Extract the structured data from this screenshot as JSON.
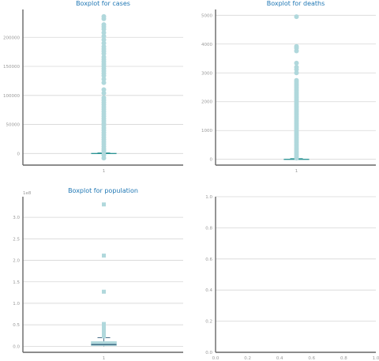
{
  "chart_data": [
    {
      "type": "box",
      "title": "Boxplot for cases",
      "xticks": [
        "1"
      ],
      "yticks": [
        0,
        50000,
        100000,
        150000,
        200000
      ],
      "ylim": [
        -20000,
        248000
      ],
      "grid": true,
      "color": "#b0d8dc",
      "median_color": "#1a8a8a",
      "box": {
        "q1": 0,
        "median": 0,
        "q3": 500,
        "whisker_low": 0,
        "whisker_high": 1200
      },
      "outliers": [
        -8000,
        -3000,
        2000,
        5000,
        8000,
        12000,
        16000,
        20000,
        24000,
        28000,
        32000,
        36000,
        40000,
        44000,
        48000,
        52000,
        56000,
        60000,
        64000,
        68000,
        72000,
        76000,
        80000,
        84000,
        88000,
        92000,
        96000,
        104000,
        110000,
        122000,
        128000,
        134000,
        138000,
        142000,
        146000,
        150000,
        154000,
        158000,
        162000,
        166000,
        172000,
        176000,
        180000,
        184000,
        190000,
        196000,
        202000,
        208000,
        214000,
        218000,
        222000,
        232000,
        236000
      ]
    },
    {
      "type": "box",
      "title": "Boxplot for deaths",
      "xticks": [
        "1"
      ],
      "yticks": [
        0,
        1000,
        2000,
        3000,
        4000,
        5000
      ],
      "ylim": [
        -200,
        5200
      ],
      "grid": true,
      "color": "#b0d8dc",
      "median_color": "#1a8a8a",
      "box": {
        "q1": 0,
        "median": 0,
        "q3": 10,
        "whisker_low": 0,
        "whisker_high": 25
      },
      "outliers": [
        40,
        100,
        160,
        220,
        280,
        340,
        400,
        460,
        520,
        580,
        640,
        700,
        760,
        820,
        880,
        940,
        1000,
        1060,
        1120,
        1180,
        1240,
        1300,
        1360,
        1420,
        1480,
        1540,
        1600,
        1660,
        1720,
        1780,
        1840,
        1900,
        1960,
        2020,
        2080,
        2140,
        2200,
        2260,
        2320,
        2380,
        2440,
        2500,
        2560,
        2620,
        2680,
        2740,
        3000,
        3120,
        3200,
        3340,
        3760,
        3860,
        3920,
        4950
      ]
    },
    {
      "type": "box",
      "title": "Boxplot for population",
      "offset_text": "1e8",
      "xticks": [
        "1"
      ],
      "yticks": [
        "0.0",
        "0.5",
        "1.0",
        "1.5",
        "2.0",
        "2.5",
        "3.0"
      ],
      "ylim": [
        -0.14,
        3.48
      ],
      "grid": true,
      "color": "#b0d8dc",
      "median_color": "#1a4a6a",
      "box": {
        "q1": 0.015,
        "median": 0.04,
        "q3": 0.11,
        "whisker_low": 0.0,
        "whisker_high": 0.2
      },
      "outliers": [
        0.23,
        0.27,
        0.3,
        0.33,
        0.36,
        0.39,
        0.42,
        0.45,
        0.48,
        0.52,
        1.27,
        2.11,
        3.3
      ]
    },
    {
      "type": "empty",
      "xticks": [
        "0.0",
        "0.2",
        "0.4",
        "0.6",
        "0.8",
        "1.0"
      ],
      "yticks": [
        "0.0",
        "0.2",
        "0.4",
        "0.6",
        "0.8",
        "1.0"
      ],
      "xlim": [
        0,
        1
      ],
      "ylim": [
        0,
        1
      ],
      "grid": true
    }
  ]
}
